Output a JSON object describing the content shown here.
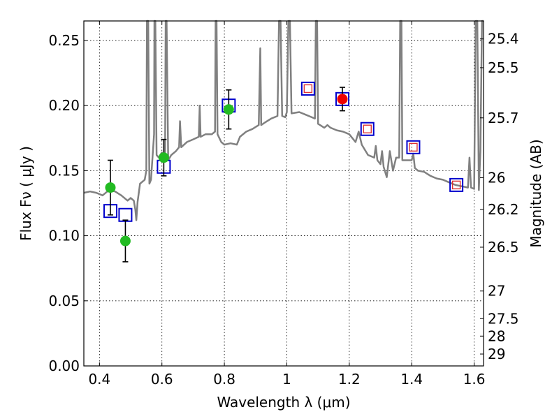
{
  "chart_data": {
    "type": "scatter",
    "xlabel": "Wavelength  λ (μm)",
    "ylabel": "Flux  Fν ( μJy )",
    "ylabel_right": "Magnitude (AB)",
    "xlim": [
      0.35,
      1.63
    ],
    "ylim": [
      0.0,
      0.265
    ],
    "grid": true,
    "x_ticks": [
      {
        "value": 0.4,
        "label": "0.4"
      },
      {
        "value": 0.6,
        "label": "0.6"
      },
      {
        "value": 0.8,
        "label": "0.8"
      },
      {
        "value": 1.0,
        "label": "1"
      },
      {
        "value": 1.2,
        "label": "1.2"
      },
      {
        "value": 1.4,
        "label": "1.4"
      },
      {
        "value": 1.6,
        "label": "1.6"
      }
    ],
    "y_ticks": [
      {
        "value": 0.0,
        "label": "0.00"
      },
      {
        "value": 0.05,
        "label": "0.05"
      },
      {
        "value": 0.1,
        "label": "0.10"
      },
      {
        "value": 0.15,
        "label": "0.15"
      },
      {
        "value": 0.2,
        "label": "0.20"
      },
      {
        "value": 0.25,
        "label": "0.25"
      }
    ],
    "mag_ticks": [
      {
        "mag": 25.4,
        "label": "25.4"
      },
      {
        "mag": 25.5,
        "label": "25.5"
      },
      {
        "mag": 25.7,
        "label": "25.7"
      },
      {
        "mag": 26.0,
        "label": "26"
      },
      {
        "mag": 26.2,
        "label": "26.2"
      },
      {
        "mag": 26.5,
        "label": "26.5"
      },
      {
        "mag": 27.0,
        "label": "27"
      },
      {
        "mag": 27.5,
        "label": "27.5"
      },
      {
        "mag": 28.0,
        "label": "28"
      },
      {
        "mag": 29.0,
        "label": "29"
      }
    ],
    "series": [
      {
        "name": "model_spectrum",
        "kind": "line",
        "color": "#808080",
        "points": [
          [
            0.35,
            0.133
          ],
          [
            0.37,
            0.134
          ],
          [
            0.39,
            0.133
          ],
          [
            0.41,
            0.131
          ],
          [
            0.43,
            0.135
          ],
          [
            0.45,
            0.134
          ],
          [
            0.47,
            0.131
          ],
          [
            0.49,
            0.127
          ],
          [
            0.5,
            0.129
          ],
          [
            0.51,
            0.127
          ],
          [
            0.515,
            0.12
          ],
          [
            0.518,
            0.112
          ],
          [
            0.522,
            0.126
          ],
          [
            0.53,
            0.14
          ],
          [
            0.545,
            0.143
          ],
          [
            0.55,
            0.15
          ],
          [
            0.552,
            0.265
          ],
          [
            0.556,
            0.265
          ],
          [
            0.56,
            0.14
          ],
          [
            0.565,
            0.143
          ],
          [
            0.575,
            0.178
          ],
          [
            0.576,
            0.265
          ],
          [
            0.579,
            0.265
          ],
          [
            0.583,
            0.162
          ],
          [
            0.59,
            0.16
          ],
          [
            0.6,
            0.164
          ],
          [
            0.61,
            0.157
          ],
          [
            0.612,
            0.265
          ],
          [
            0.615,
            0.265
          ],
          [
            0.62,
            0.158
          ],
          [
            0.63,
            0.162
          ],
          [
            0.645,
            0.165
          ],
          [
            0.655,
            0.168
          ],
          [
            0.658,
            0.188
          ],
          [
            0.662,
            0.168
          ],
          [
            0.68,
            0.172
          ],
          [
            0.7,
            0.174
          ],
          [
            0.718,
            0.176
          ],
          [
            0.721,
            0.2
          ],
          [
            0.724,
            0.176
          ],
          [
            0.74,
            0.178
          ],
          [
            0.76,
            0.178
          ],
          [
            0.77,
            0.18
          ],
          [
            0.772,
            0.265
          ],
          [
            0.775,
            0.265
          ],
          [
            0.778,
            0.178
          ],
          [
            0.79,
            0.172
          ],
          [
            0.8,
            0.17
          ],
          [
            0.82,
            0.171
          ],
          [
            0.84,
            0.17
          ],
          [
            0.85,
            0.176
          ],
          [
            0.87,
            0.18
          ],
          [
            0.89,
            0.182
          ],
          [
            0.91,
            0.185
          ],
          [
            0.915,
            0.244
          ],
          [
            0.918,
            0.185
          ],
          [
            0.93,
            0.187
          ],
          [
            0.95,
            0.19
          ],
          [
            0.97,
            0.192
          ],
          [
            0.975,
            0.265
          ],
          [
            0.98,
            0.265
          ],
          [
            0.985,
            0.192
          ],
          [
            0.995,
            0.191
          ],
          [
            1.0,
            0.195
          ],
          [
            1.005,
            0.265
          ],
          [
            1.01,
            0.265
          ],
          [
            1.015,
            0.194
          ],
          [
            1.04,
            0.195
          ],
          [
            1.06,
            0.193
          ],
          [
            1.08,
            0.191
          ],
          [
            1.09,
            0.19
          ],
          [
            1.093,
            0.265
          ],
          [
            1.097,
            0.265
          ],
          [
            1.1,
            0.186
          ],
          [
            1.12,
            0.183
          ],
          [
            1.13,
            0.185
          ],
          [
            1.14,
            0.183
          ],
          [
            1.16,
            0.181
          ],
          [
            1.18,
            0.18
          ],
          [
            1.2,
            0.178
          ],
          [
            1.22,
            0.172
          ],
          [
            1.23,
            0.18
          ],
          [
            1.24,
            0.17
          ],
          [
            1.26,
            0.162
          ],
          [
            1.28,
            0.16
          ],
          [
            1.285,
            0.169
          ],
          [
            1.29,
            0.158
          ],
          [
            1.3,
            0.155
          ],
          [
            1.305,
            0.165
          ],
          [
            1.31,
            0.153
          ],
          [
            1.32,
            0.145
          ],
          [
            1.33,
            0.165
          ],
          [
            1.34,
            0.15
          ],
          [
            1.35,
            0.16
          ],
          [
            1.36,
            0.16
          ],
          [
            1.363,
            0.265
          ],
          [
            1.367,
            0.265
          ],
          [
            1.37,
            0.158
          ],
          [
            1.38,
            0.158
          ],
          [
            1.4,
            0.158
          ],
          [
            1.405,
            0.163
          ],
          [
            1.41,
            0.152
          ],
          [
            1.42,
            0.15
          ],
          [
            1.44,
            0.149
          ],
          [
            1.46,
            0.146
          ],
          [
            1.48,
            0.144
          ],
          [
            1.5,
            0.143
          ],
          [
            1.52,
            0.141
          ],
          [
            1.54,
            0.139
          ],
          [
            1.56,
            0.138
          ],
          [
            1.58,
            0.137
          ],
          [
            1.585,
            0.16
          ],
          [
            1.59,
            0.137
          ],
          [
            1.6,
            0.136
          ],
          [
            1.605,
            0.265
          ],
          [
            1.61,
            0.265
          ],
          [
            1.615,
            0.135
          ],
          [
            1.62,
            0.165
          ],
          [
            1.625,
            0.265
          ],
          [
            1.63,
            0.265
          ]
        ]
      },
      {
        "name": "model_photometry",
        "kind": "open_square",
        "color": "#0000cc",
        "points": [
          [
            0.435,
            0.119
          ],
          [
            0.483,
            0.116
          ],
          [
            0.606,
            0.153
          ],
          [
            0.814,
            0.2
          ],
          [
            1.068,
            0.213
          ],
          [
            1.178,
            0.205
          ],
          [
            1.258,
            0.182
          ],
          [
            1.405,
            0.168
          ],
          [
            1.543,
            0.139
          ]
        ]
      },
      {
        "name": "observed_ground",
        "kind": "filled_circle",
        "color": "#22bb22",
        "points": [
          {
            "x": 0.435,
            "y": 0.137,
            "err": 0.021
          },
          {
            "x": 0.483,
            "y": 0.096,
            "err": 0.016
          },
          {
            "x": 0.606,
            "y": 0.16,
            "err": 0.014
          },
          {
            "x": 0.814,
            "y": 0.197,
            "err": 0.015
          }
        ]
      },
      {
        "name": "observed_ir_circle",
        "kind": "filled_circle",
        "color": "#ee0000",
        "points": [
          {
            "x": 1.178,
            "y": 0.205,
            "err": 0.009
          }
        ]
      },
      {
        "name": "observed_ir_square",
        "kind": "small_open_square",
        "color": "#dd3333",
        "points": [
          [
            1.068,
            0.213
          ],
          [
            1.258,
            0.182
          ],
          [
            1.405,
            0.168
          ],
          [
            1.543,
            0.139
          ]
        ]
      }
    ]
  }
}
